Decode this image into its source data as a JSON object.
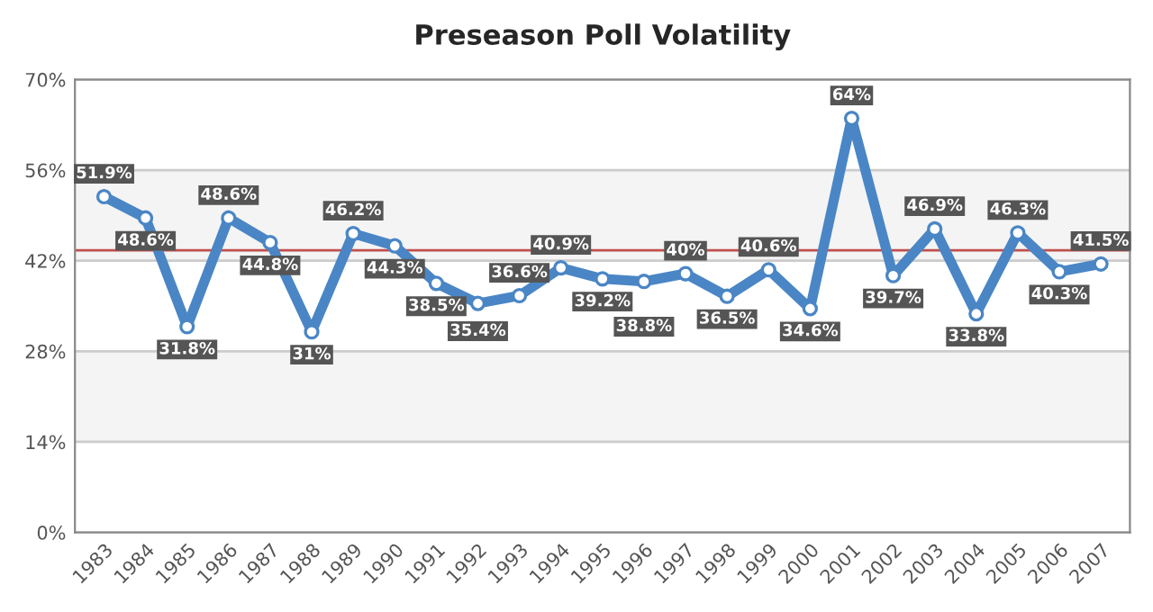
{
  "chart_data": {
    "type": "line",
    "title": "Preseason Poll Volatility",
    "categories": [
      "1983",
      "1984",
      "1985",
      "1986",
      "1987",
      "1988",
      "1989",
      "1990",
      "1991",
      "1992",
      "1993",
      "1994",
      "1995",
      "1996",
      "1997",
      "1998",
      "1999",
      "2000",
      "2001",
      "2002",
      "2003",
      "2004",
      "2005",
      "2006",
      "2007"
    ],
    "series": [
      {
        "color": "#4a86c5",
        "values": [
          51.9,
          48.6,
          31.8,
          48.6,
          44.8,
          31,
          46.2,
          44.3,
          38.5,
          35.4,
          36.6,
          40.9,
          39.2,
          38.8,
          40,
          36.5,
          40.6,
          34.6,
          64,
          39.7,
          46.9,
          33.8,
          46.3,
          40.3,
          41.5
        ],
        "value_labels": [
          "51.9%",
          "48.6%",
          "31.8%",
          "48.6%",
          "44.8%",
          "31%",
          "46.2%",
          "44.3%",
          "38.5%",
          "35.4%",
          "36.6%",
          "40.9%",
          "39.2%",
          "38.8%",
          "40%",
          "36.5%",
          "40.6%",
          "34.6%",
          "64%",
          "39.7%",
          "46.9%",
          "33.8%",
          "46.3%",
          "40.3%",
          "41.5%"
        ]
      }
    ],
    "ylim": [
      0,
      70
    ],
    "yticks": [
      {
        "value": 0,
        "label": "0%"
      },
      {
        "value": 14,
        "label": "14%"
      },
      {
        "value": 28,
        "label": "28%"
      },
      {
        "value": 42,
        "label": "42%"
      },
      {
        "value": 56,
        "label": "56%"
      },
      {
        "value": 70,
        "label": "70%"
      }
    ],
    "ref_lines": [
      {
        "axis": "y",
        "value": 43.6,
        "color": "#c0504d"
      }
    ],
    "grid": "y",
    "marker": "circle",
    "line_style": "solid"
  }
}
